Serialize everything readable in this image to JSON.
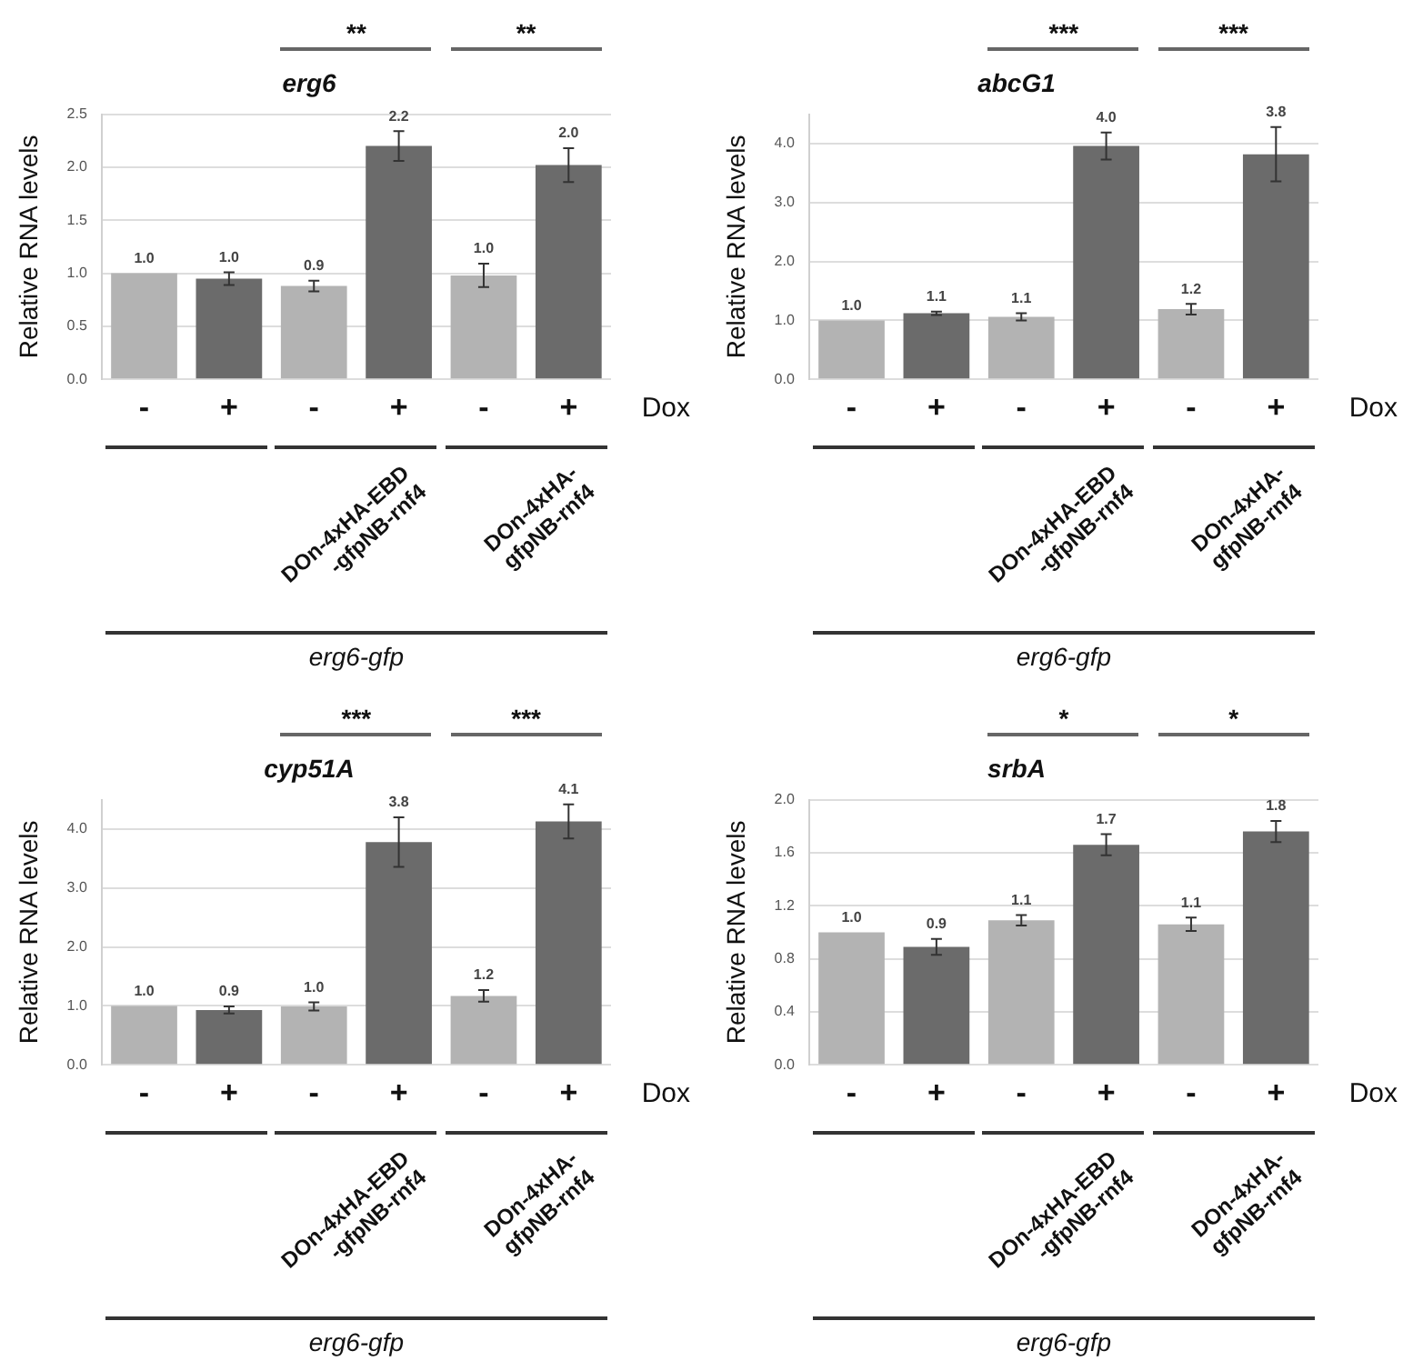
{
  "chart_data": [
    {
      "type": "bar",
      "title": "erg6",
      "ylabel": "Relative RNA levels",
      "categories": [
        "-",
        "+",
        "-",
        "+",
        "-",
        "+"
      ],
      "values": [
        1.0,
        0.95,
        0.88,
        2.2,
        0.98,
        2.02
      ],
      "errors": [
        null,
        0.06,
        0.05,
        0.14,
        0.11,
        0.16
      ],
      "value_labels": [
        "1.0",
        "1.0",
        "0.9",
        "2.2",
        "1.0",
        "2.0"
      ],
      "colors": [
        "#b3b3b3",
        "#6b6b6b",
        "#b3b3b3",
        "#6b6b6b",
        "#b3b3b3",
        "#6b6b6b"
      ],
      "ylim": [
        0,
        2.5
      ],
      "yticks": [
        {
          "value": 0,
          "label": "0.0"
        },
        0.5,
        {
          "value": 1,
          "label": "1.0"
        },
        1.5,
        {
          "value": 2,
          "label": "2.0"
        },
        2.5
      ],
      "grid": "y",
      "legend": false,
      "annotations": [
        "**",
        "**",
        "Dox",
        "DOn-4xHA-EBD\n-gfpNB-rnf4",
        "DOn-4xHA-\ngfpNB-rnf4",
        "erg6-gfp"
      ]
    },
    {
      "type": "bar",
      "title": "abcG1",
      "ylabel": "Relative RNA levels",
      "categories": [
        "-",
        "+",
        "-",
        "+",
        "-",
        "+"
      ],
      "values": [
        1.0,
        1.12,
        1.06,
        3.96,
        1.19,
        3.82
      ],
      "errors": [
        null,
        0.03,
        0.06,
        0.23,
        0.09,
        0.46
      ],
      "value_labels": [
        "1.0",
        "1.1",
        "1.1",
        "4.0",
        "1.2",
        "3.8"
      ],
      "colors": [
        "#b3b3b3",
        "#6b6b6b",
        "#b3b3b3",
        "#6b6b6b",
        "#b3b3b3",
        "#6b6b6b"
      ],
      "ylim": [
        0,
        4.5
      ],
      "yticks": [
        {
          "value": 0,
          "label": "0.0"
        },
        {
          "value": 1,
          "label": "1.0"
        },
        {
          "value": 2,
          "label": "2.0"
        },
        {
          "value": 3,
          "label": "3.0"
        },
        {
          "value": 4,
          "label": "4.0"
        }
      ],
      "grid": "y",
      "legend": false,
      "annotations": [
        "***",
        "***",
        "Dox",
        "DOn-4xHA-EBD\n-gfpNB-rnf4",
        "DOn-4xHA-\ngfpNB-rnf4",
        "erg6-gfp"
      ]
    },
    {
      "type": "bar",
      "title": "cyp51A",
      "ylabel": "Relative RNA levels",
      "categories": [
        "-",
        "+",
        "-",
        "+",
        "-",
        "+"
      ],
      "values": [
        1.0,
        0.93,
        0.99,
        3.78,
        1.17,
        4.13
      ],
      "errors": [
        null,
        0.06,
        0.07,
        0.42,
        0.1,
        0.29
      ],
      "value_labels": [
        "1.0",
        "0.9",
        "1.0",
        "3.8",
        "1.2",
        "4.1"
      ],
      "colors": [
        "#b3b3b3",
        "#6b6b6b",
        "#b3b3b3",
        "#6b6b6b",
        "#b3b3b3",
        "#6b6b6b"
      ],
      "ylim": [
        0,
        4.5
      ],
      "yticks": [
        {
          "value": 0,
          "label": "0.0"
        },
        {
          "value": 1,
          "label": "1.0"
        },
        {
          "value": 2,
          "label": "2.0"
        },
        {
          "value": 3,
          "label": "3.0"
        },
        {
          "value": 4,
          "label": "4.0"
        }
      ],
      "grid": "y",
      "legend": false,
      "annotations": [
        "***",
        "***",
        "Dox",
        "DOn-4xHA-EBD\n-gfpNB-rnf4",
        "DOn-4xHA-\ngfpNB-rnf4",
        "erg6-gfp"
      ]
    },
    {
      "type": "bar",
      "title": "srbA",
      "ylabel": "Relative RNA levels",
      "categories": [
        "-",
        "+",
        "-",
        "+",
        "-",
        "+"
      ],
      "values": [
        1.0,
        0.89,
        1.09,
        1.66,
        1.06,
        1.76
      ],
      "errors": [
        null,
        0.06,
        0.04,
        0.08,
        0.05,
        0.08
      ],
      "value_labels": [
        "1.0",
        "0.9",
        "1.1",
        "1.7",
        "1.1",
        "1.8"
      ],
      "colors": [
        "#b3b3b3",
        "#6b6b6b",
        "#b3b3b3",
        "#6b6b6b",
        "#b3b3b3",
        "#6b6b6b"
      ],
      "ylim": [
        0,
        2.0
      ],
      "yticks": [
        {
          "value": 0,
          "label": "0.0"
        },
        0.4,
        0.8,
        1.2,
        1.6,
        {
          "value": 2,
          "label": "2.0"
        }
      ],
      "grid": "y",
      "legend": false,
      "annotations": [
        "*",
        "*",
        "Dox",
        "DOn-4xHA-EBD\n-gfpNB-rnf4",
        "DOn-4xHA-\ngfpNB-rnf4",
        "erg6-gfp"
      ]
    }
  ]
}
